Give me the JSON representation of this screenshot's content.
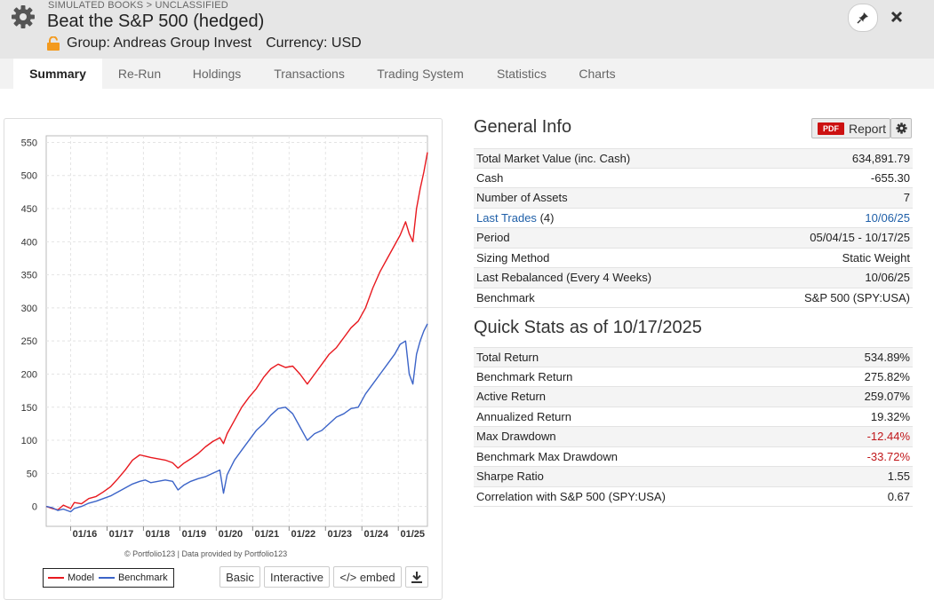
{
  "header": {
    "breadcrumb": "SIMULATED BOOKS > UNCLASSIFIED",
    "title": "Beat the S&P 500 (hedged)",
    "group": "Group: Andreas Group Invest",
    "currency": "Currency: USD"
  },
  "tabs": [
    "Summary",
    "Re-Run",
    "Holdings",
    "Transactions",
    "Trading System",
    "Statistics",
    "Charts"
  ],
  "chart": {
    "credit": "© Portfolio123 | Data provided by Portfolio123",
    "legend_model": "Model",
    "legend_benchmark": "Benchmark",
    "btn_basic": "Basic",
    "btn_interactive": "Interactive",
    "btn_embed": "</> embed"
  },
  "colors": {
    "model": "#e8191f",
    "benchmark": "#3c64c8",
    "negative": "#c0171a",
    "link": "#1f5fa8"
  },
  "chart_data": {
    "type": "line",
    "title": "",
    "xlabel": "",
    "ylabel": "",
    "ylim": [
      -30,
      560
    ],
    "yticks": [
      0,
      50,
      100,
      150,
      200,
      250,
      300,
      350,
      400,
      450,
      500,
      550
    ],
    "xticks": [
      "01/16",
      "01/17",
      "01/18",
      "01/19",
      "01/20",
      "01/21",
      "01/22",
      "01/23",
      "01/24",
      "01/25"
    ],
    "x_range": [
      2015.33,
      2025.8
    ],
    "series": [
      {
        "name": "Model",
        "x": [
          2015.33,
          2015.5,
          2015.65,
          2015.8,
          2016.0,
          2016.1,
          2016.3,
          2016.5,
          2016.7,
          2016.9,
          2017.1,
          2017.3,
          2017.5,
          2017.7,
          2017.9,
          2018.05,
          2018.2,
          2018.4,
          2018.6,
          2018.8,
          2018.95,
          2019.1,
          2019.3,
          2019.5,
          2019.7,
          2019.9,
          2020.1,
          2020.2,
          2020.3,
          2020.5,
          2020.7,
          2020.9,
          2021.1,
          2021.3,
          2021.5,
          2021.7,
          2021.9,
          2022.1,
          2022.3,
          2022.5,
          2022.7,
          2022.9,
          2023.1,
          2023.3,
          2023.5,
          2023.7,
          2023.9,
          2024.1,
          2024.3,
          2024.5,
          2024.7,
          2024.9,
          2025.05,
          2025.2,
          2025.3,
          2025.4,
          2025.5,
          2025.6,
          2025.7,
          2025.8
        ],
        "values": [
          0,
          -3,
          -5,
          2,
          -3,
          6,
          4,
          12,
          15,
          22,
          30,
          42,
          55,
          70,
          78,
          76,
          74,
          72,
          70,
          66,
          58,
          65,
          72,
          80,
          90,
          98,
          104,
          95,
          110,
          130,
          150,
          165,
          178,
          195,
          208,
          215,
          210,
          212,
          200,
          185,
          200,
          215,
          230,
          240,
          255,
          270,
          280,
          300,
          330,
          355,
          375,
          395,
          410,
          430,
          412,
          400,
          450,
          480,
          505,
          535
        ]
      },
      {
        "name": "Benchmark",
        "x": [
          2015.33,
          2015.5,
          2015.65,
          2015.8,
          2016.0,
          2016.1,
          2016.3,
          2016.5,
          2016.7,
          2016.9,
          2017.1,
          2017.3,
          2017.5,
          2017.7,
          2017.9,
          2018.05,
          2018.2,
          2018.4,
          2018.6,
          2018.8,
          2018.95,
          2019.1,
          2019.3,
          2019.5,
          2019.7,
          2019.9,
          2020.1,
          2020.2,
          2020.3,
          2020.5,
          2020.7,
          2020.9,
          2021.1,
          2021.3,
          2021.5,
          2021.7,
          2021.9,
          2022.1,
          2022.3,
          2022.5,
          2022.7,
          2022.9,
          2023.1,
          2023.3,
          2023.5,
          2023.7,
          2023.9,
          2024.1,
          2024.3,
          2024.5,
          2024.7,
          2024.9,
          2025.05,
          2025.2,
          2025.3,
          2025.4,
          2025.5,
          2025.6,
          2025.7,
          2025.8
        ],
        "values": [
          0,
          -2,
          -6,
          -4,
          -8,
          -3,
          0,
          5,
          8,
          12,
          16,
          22,
          28,
          34,
          38,
          40,
          36,
          38,
          40,
          38,
          25,
          32,
          38,
          42,
          45,
          50,
          55,
          20,
          48,
          70,
          85,
          100,
          115,
          125,
          138,
          148,
          150,
          140,
          120,
          100,
          110,
          115,
          125,
          135,
          140,
          148,
          150,
          170,
          185,
          200,
          215,
          230,
          245,
          250,
          200,
          185,
          230,
          250,
          265,
          276
        ]
      }
    ]
  },
  "general_info": {
    "title": "General Info",
    "report_label": "Report",
    "pdf_badge": "PDF",
    "rows": [
      {
        "label": "Total Market Value (inc. Cash)",
        "value": "634,891.79"
      },
      {
        "label": "Cash",
        "value": "-655.30"
      },
      {
        "label": "Number of Assets",
        "value": "7"
      },
      {
        "label": "Last Trades",
        "label_extra": "(4)",
        "value": "10/06/25"
      },
      {
        "label": "Period",
        "value": "05/04/15 - 10/17/25"
      },
      {
        "label": "Sizing Method",
        "value": "Static Weight"
      },
      {
        "label": "Last Rebalanced (Every 4 Weeks)",
        "value": "10/06/25"
      },
      {
        "label": "Benchmark",
        "value": "S&P 500 (SPY:USA)"
      }
    ]
  },
  "quick_stats": {
    "title": "Quick Stats as of 10/17/2025",
    "rows": [
      {
        "label": "Total Return",
        "value": "534.89%"
      },
      {
        "label": "Benchmark Return",
        "value": "275.82%"
      },
      {
        "label": "Active Return",
        "value": "259.07%"
      },
      {
        "label": "Annualized Return",
        "value": "19.32%"
      },
      {
        "label": "Max Drawdown",
        "value": "-12.44%"
      },
      {
        "label": "Benchmark Max Drawdown",
        "value": "-33.72%"
      },
      {
        "label": "Sharpe Ratio",
        "value": "1.55"
      },
      {
        "label": "Correlation with S&P 500 (SPY:USA)",
        "value": "0.67"
      }
    ]
  }
}
